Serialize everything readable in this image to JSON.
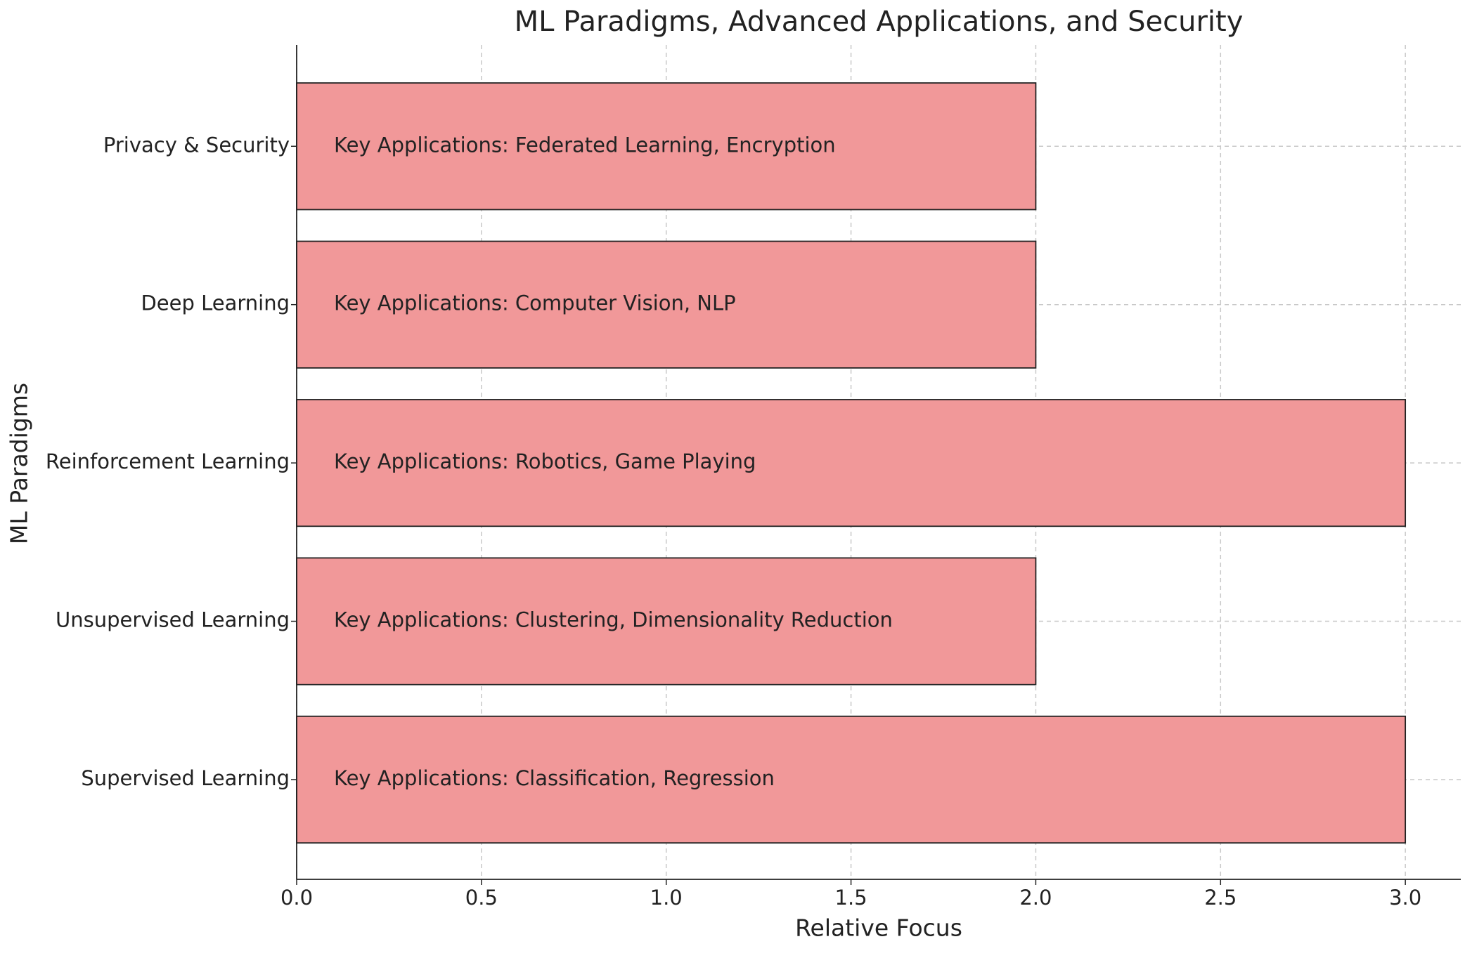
{
  "chart_data": {
    "type": "barh",
    "title": "ML Paradigms, Advanced Applications, and Security",
    "x_label": "Relative Focus",
    "y_label": "ML Paradigms",
    "categories": [
      "Supervised Learning",
      "Unsupervised Learning",
      "Reinforcement Learning",
      "Deep Learning",
      "Privacy & Security"
    ],
    "values": [
      3,
      2,
      3,
      2,
      2
    ],
    "annotations": [
      "Key Applications: Classification, Regression",
      "Key Applications: Clustering, Dimensionality Reduction",
      "Key Applications: Robotics, Game Playing",
      "Key Applications: Computer Vision, NLP",
      "Key Applications: Federated Learning, Encryption"
    ],
    "color": "#f19899",
    "xlim": [
      0,
      3.15
    ],
    "xticks": [
      {
        "value": 0,
        "label": "0.0"
      },
      {
        "value": 0.5,
        "label": "0.5"
      },
      {
        "value": 1,
        "label": "1.0"
      },
      {
        "value": 1.5,
        "label": "1.5"
      },
      {
        "value": 2,
        "label": "2.0"
      },
      {
        "value": 2.5,
        "label": "2.5"
      },
      {
        "value": 3,
        "label": "3.0"
      }
    ],
    "grid": true
  }
}
